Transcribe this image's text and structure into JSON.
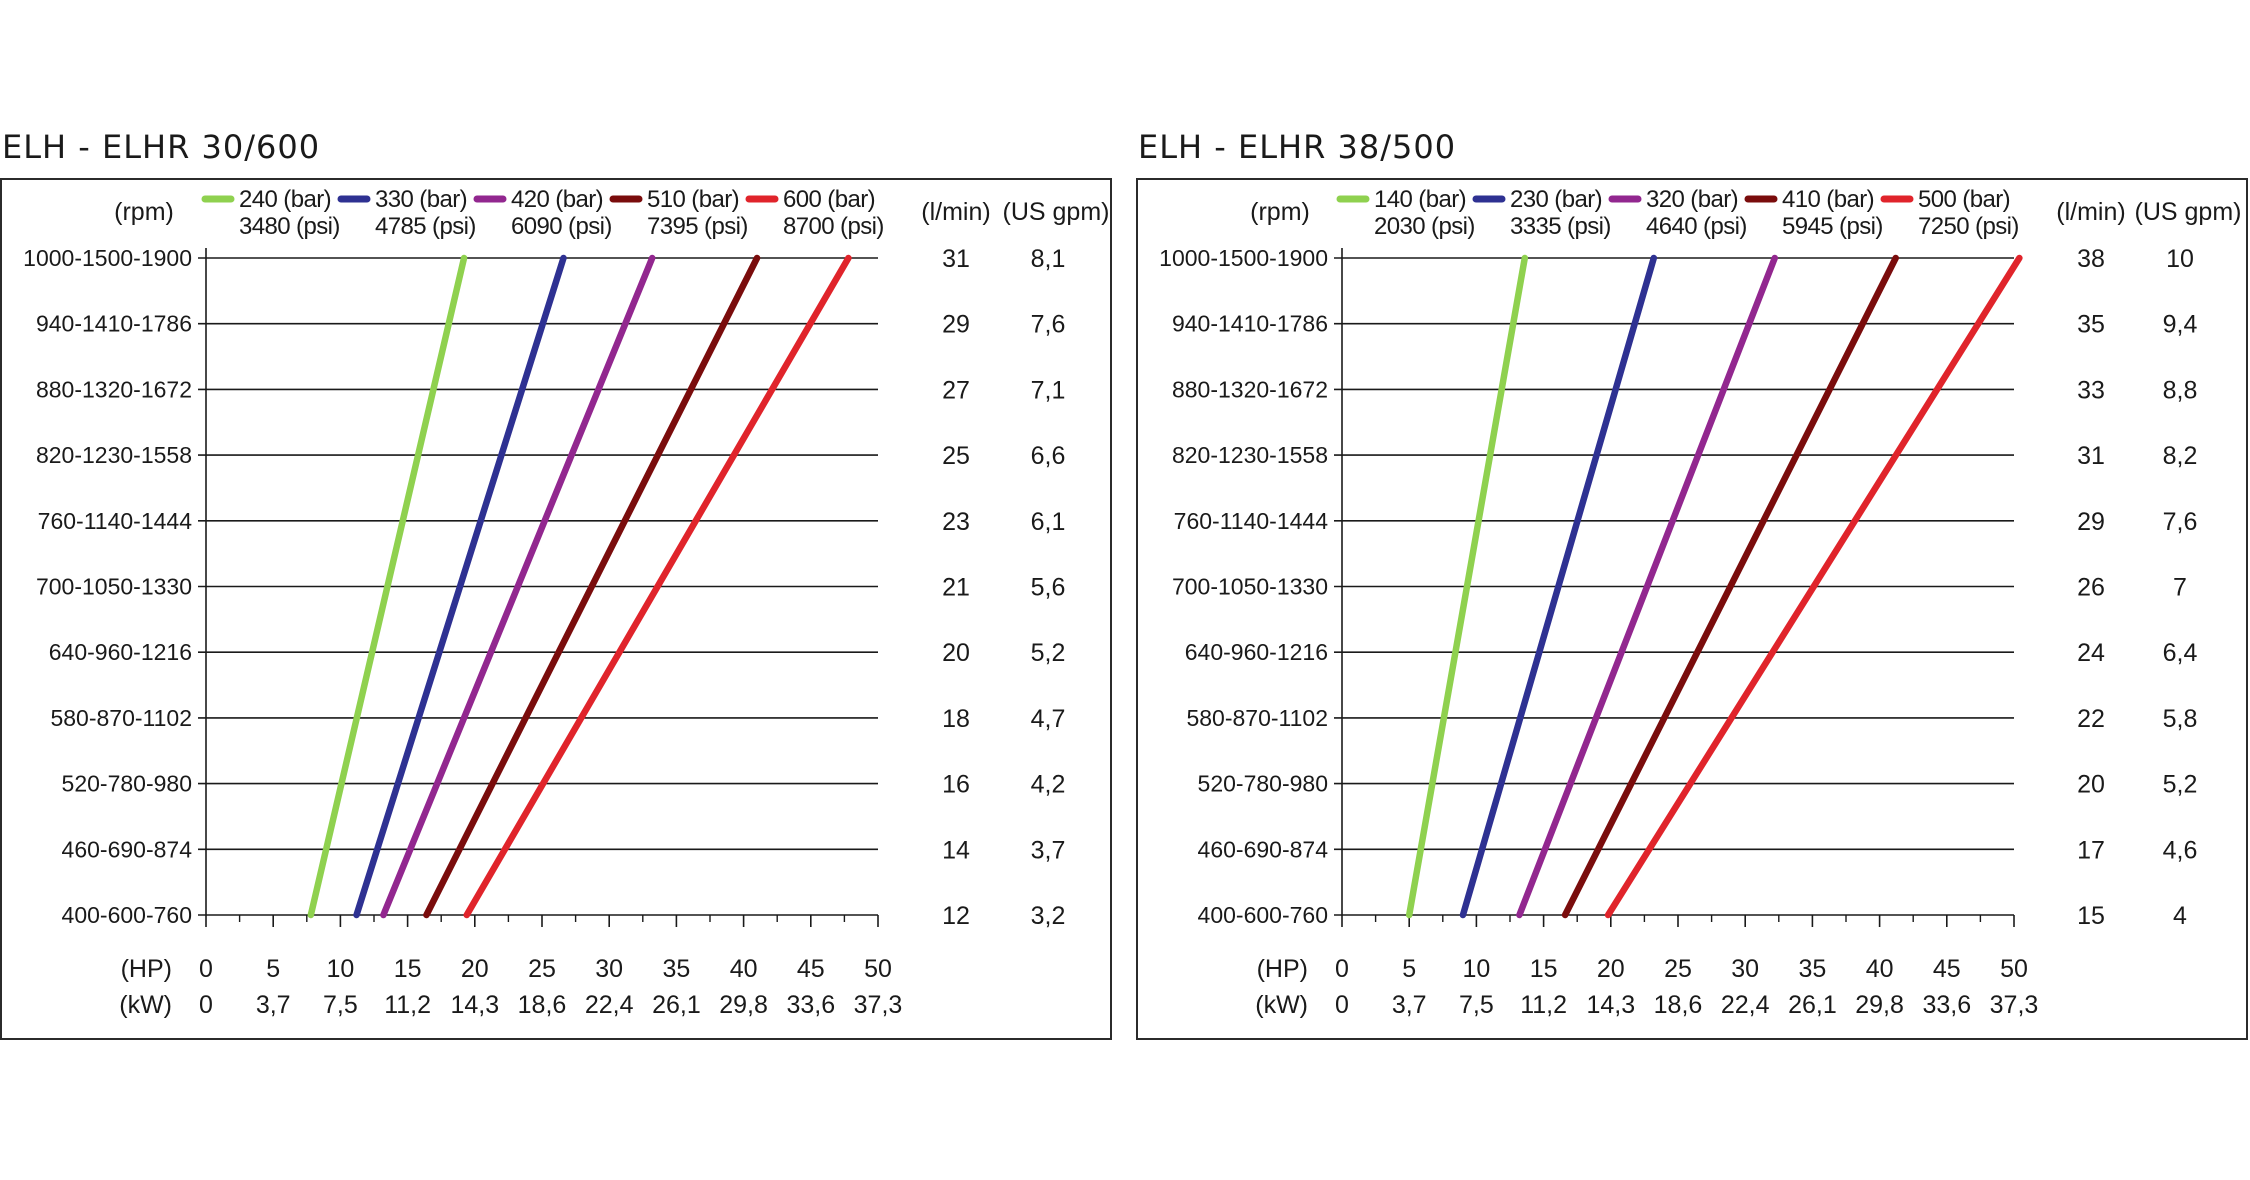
{
  "chart_data": [
    {
      "type": "line",
      "title": "ELH - ELHR 30/600",
      "rpm_unit": "(rpm)",
      "flow_unit": "(l/min)",
      "gpm_unit": "(US gpm)",
      "hp_unit": "(HP)",
      "kw_unit": "(kW)",
      "rpm_labels": [
        "400-600-760",
        "460-690-874",
        "520-780-980",
        "580-870-1102",
        "640-960-1216",
        "700-1050-1330",
        "760-1140-1444",
        "820-1230-1558",
        "880-1320-1672",
        "940-1410-1786",
        "1000-1500-1900"
      ],
      "flow_lmin": [
        "12",
        "14",
        "16",
        "18",
        "20",
        "21",
        "23",
        "25",
        "27",
        "29",
        "31"
      ],
      "flow_gpm": [
        "3,2",
        "3,7",
        "4,2",
        "4,7",
        "5,2",
        "5,6",
        "6,1",
        "6,6",
        "7,1",
        "7,6",
        "8,1"
      ],
      "hp_ticks": [
        "0",
        "5",
        "10",
        "15",
        "20",
        "25",
        "30",
        "35",
        "40",
        "45",
        "50"
      ],
      "kw_ticks": [
        "0",
        "3,7",
        "7,5",
        "11,2",
        "14,3",
        "18,6",
        "22,4",
        "26,1",
        "29,8",
        "33,6",
        "37,3"
      ],
      "xlim": [
        0,
        50
      ],
      "grid": true,
      "series": [
        {
          "bar": "240 (bar)",
          "psi": "3480 (psi)",
          "color": "#8fd14f",
          "hp": [
            7.8,
            19.2
          ]
        },
        {
          "bar": "330 (bar)",
          "psi": "4785 (psi)",
          "color": "#2e3192",
          "hp": [
            11.2,
            26.6
          ]
        },
        {
          "bar": "420 (bar)",
          "psi": "6090 (psi)",
          "color": "#92278f",
          "hp": [
            13.2,
            33.2
          ]
        },
        {
          "bar": "510 (bar)",
          "psi": "7395 (psi)",
          "color": "#7a0c0c",
          "hp": [
            16.4,
            41.0
          ]
        },
        {
          "bar": "600 (bar)",
          "psi": "8700 (psi)",
          "color": "#e0242b",
          "hp": [
            19.4,
            47.8
          ]
        }
      ]
    },
    {
      "type": "line",
      "title": "ELH - ELHR 38/500",
      "rpm_unit": "(rpm)",
      "flow_unit": "(l/min)",
      "gpm_unit": "(US gpm)",
      "hp_unit": "(HP)",
      "kw_unit": "(kW)",
      "rpm_labels": [
        "400-600-760",
        "460-690-874",
        "520-780-980",
        "580-870-1102",
        "640-960-1216",
        "700-1050-1330",
        "760-1140-1444",
        "820-1230-1558",
        "880-1320-1672",
        "940-1410-1786",
        "1000-1500-1900"
      ],
      "flow_lmin": [
        "15",
        "17",
        "20",
        "22",
        "24",
        "26",
        "29",
        "31",
        "33",
        "35",
        "38"
      ],
      "flow_gpm": [
        "4",
        "4,6",
        "5,2",
        "5,8",
        "6,4",
        "7",
        "7,6",
        "8,2",
        "8,8",
        "9,4",
        "10"
      ],
      "hp_ticks": [
        "0",
        "5",
        "10",
        "15",
        "20",
        "25",
        "30",
        "35",
        "40",
        "45",
        "50"
      ],
      "kw_ticks": [
        "0",
        "3,7",
        "7,5",
        "11,2",
        "14,3",
        "18,6",
        "22,4",
        "26,1",
        "29,8",
        "33,6",
        "37,3"
      ],
      "xlim": [
        0,
        50
      ],
      "grid": true,
      "series": [
        {
          "bar": "140 (bar)",
          "psi": "2030 (psi)",
          "color": "#8fd14f",
          "hp": [
            5.0,
            13.6
          ]
        },
        {
          "bar": "230 (bar)",
          "psi": "3335 (psi)",
          "color": "#2e3192",
          "hp": [
            9.0,
            23.2
          ]
        },
        {
          "bar": "320 (bar)",
          "psi": "4640 (psi)",
          "color": "#92278f",
          "hp": [
            13.2,
            32.2
          ]
        },
        {
          "bar": "410 (bar)",
          "psi": "5945 (psi)",
          "color": "#7a0c0c",
          "hp": [
            16.6,
            41.2
          ]
        },
        {
          "bar": "500 (bar)",
          "psi": "7250 (psi)",
          "color": "#e0242b",
          "hp": [
            19.8,
            50.4
          ]
        }
      ]
    }
  ]
}
